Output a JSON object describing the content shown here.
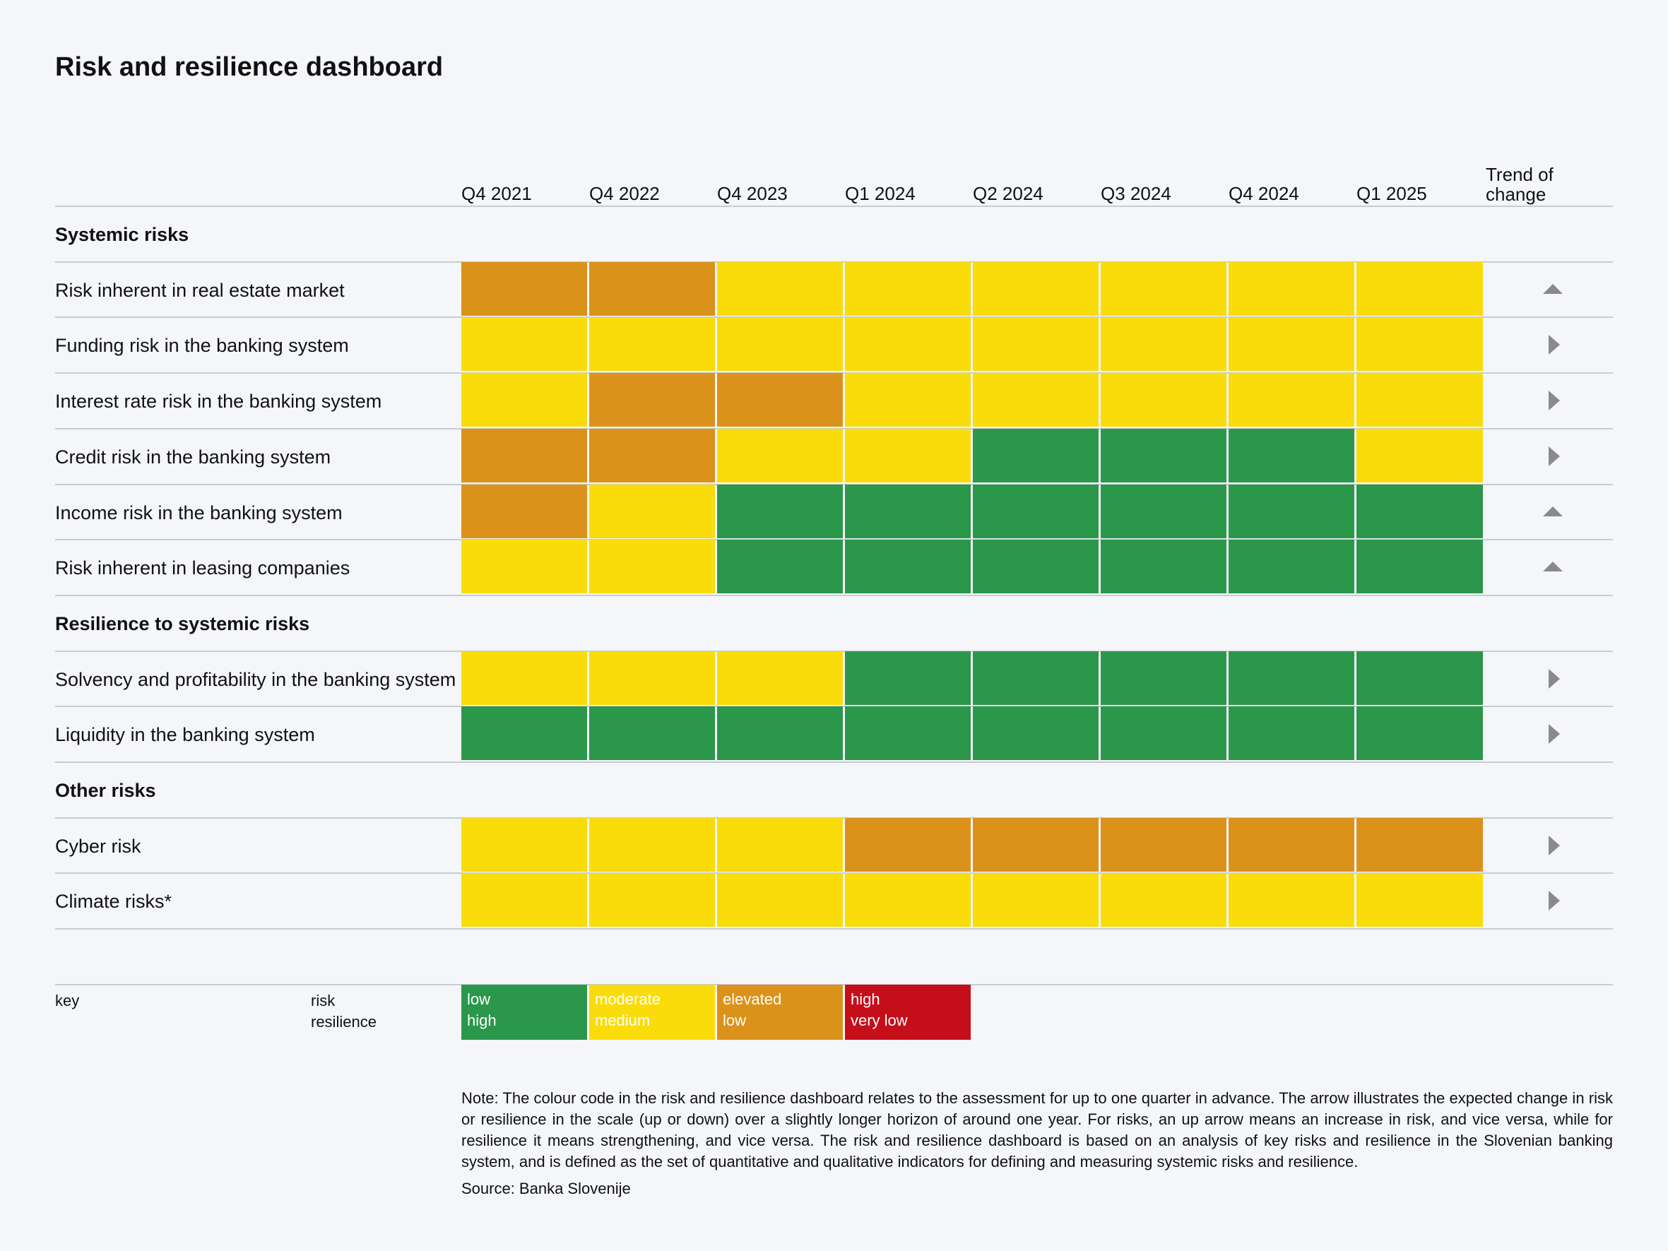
{
  "chart_data": {
    "type": "heatmap",
    "title": "Risk and resilience dashboard",
    "columns": [
      "Q4 2021",
      "Q4 2022",
      "Q4 2023",
      "Q1 2024",
      "Q2 2024",
      "Q3 2024",
      "Q4 2024",
      "Q1 2025"
    ],
    "trend_header": [
      "Trend of",
      "change"
    ],
    "levels": [
      "low",
      "moderate",
      "elevated",
      "high"
    ],
    "sections": [
      {
        "name": "Systemic risks",
        "rows": [
          {
            "label": "Risk inherent in real estate market",
            "values": [
              "elevated",
              "elevated",
              "moderate",
              "moderate",
              "moderate",
              "moderate",
              "moderate",
              "moderate"
            ],
            "trend": "up"
          },
          {
            "label": "Funding risk in the banking system",
            "values": [
              "moderate",
              "moderate",
              "moderate",
              "moderate",
              "moderate",
              "moderate",
              "moderate",
              "moderate"
            ],
            "trend": "flat"
          },
          {
            "label": "Interest rate risk in the banking system",
            "values": [
              "moderate",
              "elevated",
              "elevated",
              "moderate",
              "moderate",
              "moderate",
              "moderate",
              "moderate"
            ],
            "trend": "flat"
          },
          {
            "label": "Credit risk in the banking system",
            "values": [
              "elevated",
              "elevated",
              "moderate",
              "moderate",
              "low",
              "low",
              "low",
              "moderate"
            ],
            "trend": "flat"
          },
          {
            "label": "Income risk in the banking system",
            "values": [
              "elevated",
              "moderate",
              "low",
              "low",
              "low",
              "low",
              "low",
              "low"
            ],
            "trend": "up"
          },
          {
            "label": "Risk inherent in leasing companies",
            "values": [
              "moderate",
              "moderate",
              "low",
              "low",
              "low",
              "low",
              "low",
              "low"
            ],
            "trend": "up"
          }
        ]
      },
      {
        "name": "Resilience to systemic risks",
        "rows": [
          {
            "label": "Solvency and profitability in the banking system",
            "values": [
              "moderate",
              "moderate",
              "moderate",
              "low",
              "low",
              "low",
              "low",
              "low"
            ],
            "trend": "flat"
          },
          {
            "label": "Liquidity in the banking system",
            "values": [
              "low",
              "low",
              "low",
              "low",
              "low",
              "low",
              "low",
              "low"
            ],
            "trend": "flat"
          }
        ]
      },
      {
        "name": "Other risks",
        "rows": [
          {
            "label": "Cyber risk",
            "values": [
              "moderate",
              "moderate",
              "moderate",
              "elevated",
              "elevated",
              "elevated",
              "elevated",
              "elevated"
            ],
            "trend": "flat"
          },
          {
            "label": "Climate risks*",
            "values": [
              "moderate",
              "moderate",
              "moderate",
              "moderate",
              "moderate",
              "moderate",
              "moderate",
              "moderate"
            ],
            "trend": "flat"
          }
        ]
      }
    ],
    "key": {
      "label": "key",
      "risk_label": "risk",
      "resilience_label": "resilience",
      "items": [
        {
          "level": "low",
          "risk": "low",
          "resilience": "high"
        },
        {
          "level": "moderate",
          "risk": "moderate",
          "resilience": "medium"
        },
        {
          "level": "elevated",
          "risk": "elevated",
          "resilience": "low"
        },
        {
          "level": "high",
          "risk": "high",
          "resilience": "very low"
        }
      ]
    }
  },
  "colors": {
    "low": "#2b974b",
    "moderate": "#fadc0a",
    "elevated": "#db921b",
    "high": "#c40e1a"
  },
  "note": "Note: The colour code in the risk and resilience dashboard relates to the assessment for up to one quarter in advance. The arrow illustrates the expected change in risk or resilience in the scale (up or down) over a slightly longer horizon of around one year. For risks, an up arrow means an increase in risk, and vice versa, while for resilience it means strengthe­ning, and vice versa. The risk and resilience dashboard is based on an analysis of key risks and resilience in the Slovenian banking system, and is defined as the set of quantitative and qualitative indicators for defining and measuring systemic risks and resilience.",
  "source": "Source: Banka Slovenije"
}
